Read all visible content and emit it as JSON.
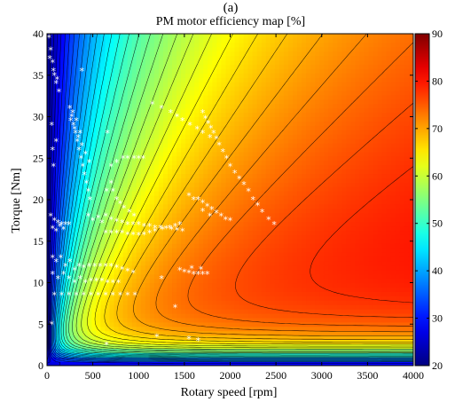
{
  "chart_data": {
    "type": "heatmap",
    "panel_label": "(a)",
    "title": "PM motor efficiency map [%]",
    "xlabel": "Rotary speed [rpm]",
    "ylabel": "Torque [Nm]",
    "xlim": [
      0,
      4000
    ],
    "ylim": [
      0,
      40
    ],
    "xticks": [
      "0",
      "500",
      "1000",
      "1500",
      "2000",
      "2500",
      "3000",
      "3500",
      "4000"
    ],
    "yticks": [
      "0",
      "5",
      "10",
      "15",
      "20",
      "25",
      "30",
      "35",
      "40"
    ],
    "colorbar": {
      "range": [
        20,
        90
      ],
      "ticks": [
        "20",
        "30",
        "40",
        "50",
        "60",
        "70",
        "80",
        "90"
      ],
      "colormap": "jet"
    },
    "efficiency_contours": {
      "levels_step": 2,
      "description_points": [
        {
          "speed": 100,
          "torque": 20,
          "efficiency": 40
        },
        {
          "speed": 300,
          "torque": 20,
          "efficiency": 62
        },
        {
          "speed": 700,
          "torque": 20,
          "efficiency": 78
        },
        {
          "speed": 1500,
          "torque": 20,
          "efficiency": 84
        },
        {
          "speed": 2500,
          "torque": 35,
          "efficiency": 88
        },
        {
          "speed": 3500,
          "torque": 38,
          "efficiency": 90
        },
        {
          "speed": 1000,
          "torque": 5,
          "efficiency": 70
        },
        {
          "speed": 3000,
          "torque": 2,
          "efficiency": 52
        }
      ]
    },
    "operating_points": {
      "marker": "*",
      "color": "#ffffff",
      "points": [
        [
          20,
          39.5
        ],
        [
          40,
          38
        ],
        [
          60,
          36.5
        ],
        [
          80,
          35
        ],
        [
          100,
          34
        ],
        [
          130,
          33
        ],
        [
          30,
          37
        ],
        [
          70,
          35.5
        ],
        [
          110,
          34.5
        ],
        [
          380,
          35.5
        ],
        [
          250,
          31
        ],
        [
          270,
          30
        ],
        [
          290,
          29
        ],
        [
          310,
          28
        ],
        [
          330,
          27
        ],
        [
          350,
          26
        ],
        [
          370,
          25
        ],
        [
          390,
          24
        ],
        [
          410,
          23
        ],
        [
          430,
          22
        ],
        [
          450,
          21
        ],
        [
          470,
          20
        ],
        [
          260,
          29.5
        ],
        [
          300,
          28.5
        ],
        [
          340,
          27.5
        ],
        [
          380,
          26.5
        ],
        [
          420,
          25.5
        ],
        [
          460,
          24.5
        ],
        [
          280,
          30.5
        ],
        [
          320,
          29.5
        ],
        [
          360,
          28
        ],
        [
          50,
          29
        ],
        [
          60,
          26
        ],
        [
          100,
          27
        ],
        [
          70,
          24
        ],
        [
          660,
          28
        ],
        [
          650,
          21
        ],
        [
          700,
          22
        ],
        [
          720,
          21
        ],
        [
          760,
          20
        ],
        [
          800,
          19.5
        ],
        [
          840,
          19
        ],
        [
          900,
          18.5
        ],
        [
          950,
          18
        ],
        [
          700,
          24
        ],
        [
          760,
          24.5
        ],
        [
          830,
          25
        ],
        [
          880,
          25
        ],
        [
          950,
          25
        ],
        [
          1000,
          25
        ],
        [
          1050,
          25
        ],
        [
          1150,
          31.5
        ],
        [
          1250,
          31
        ],
        [
          1350,
          30.5
        ],
        [
          1420,
          30
        ],
        [
          1480,
          29.5
        ],
        [
          1560,
          29
        ],
        [
          1640,
          28.5
        ],
        [
          1700,
          28
        ],
        [
          1780,
          27.5
        ],
        [
          1700,
          30.5
        ],
        [
          1730,
          29.8
        ],
        [
          1760,
          29.2
        ],
        [
          1790,
          28.6
        ],
        [
          1820,
          28
        ],
        [
          1850,
          27.3
        ],
        [
          1880,
          26.6
        ],
        [
          1920,
          25.8
        ],
        [
          1960,
          25
        ],
        [
          2000,
          24
        ],
        [
          2050,
          23.2
        ],
        [
          2100,
          22.5
        ],
        [
          2150,
          21.8
        ],
        [
          2200,
          21
        ],
        [
          2250,
          20
        ],
        [
          2300,
          19.3
        ],
        [
          2350,
          18.5
        ],
        [
          2420,
          17.6
        ],
        [
          2480,
          17
        ],
        [
          1550,
          20.5
        ],
        [
          1600,
          20
        ],
        [
          1650,
          20
        ],
        [
          1700,
          19.6
        ],
        [
          1750,
          19.2
        ],
        [
          1800,
          18.8
        ],
        [
          1850,
          18.4
        ],
        [
          1900,
          18
        ],
        [
          1950,
          17.6
        ],
        [
          2000,
          17.5
        ],
        [
          1700,
          18.6
        ],
        [
          1780,
          18
        ],
        [
          640,
          18
        ],
        [
          700,
          17.6
        ],
        [
          760,
          17.4
        ],
        [
          820,
          17.2
        ],
        [
          880,
          17
        ],
        [
          940,
          17
        ],
        [
          1000,
          17
        ],
        [
          1060,
          16.8
        ],
        [
          1120,
          16.8
        ],
        [
          1180,
          16.6
        ],
        [
          1240,
          16.6
        ],
        [
          1300,
          16.5
        ],
        [
          1360,
          16.4
        ],
        [
          1420,
          16.3
        ],
        [
          1480,
          16.2
        ],
        [
          640,
          16
        ],
        [
          700,
          16
        ],
        [
          760,
          16
        ],
        [
          820,
          16
        ],
        [
          880,
          15.8
        ],
        [
          940,
          15.8
        ],
        [
          1000,
          15.7
        ],
        [
          1060,
          15.8
        ],
        [
          1120,
          16
        ],
        [
          1180,
          16.2
        ],
        [
          1260,
          16.4
        ],
        [
          1340,
          16.6
        ],
        [
          1400,
          16.8
        ],
        [
          1450,
          17
        ],
        [
          40,
          18
        ],
        [
          80,
          17.5
        ],
        [
          120,
          17.2
        ],
        [
          160,
          17
        ],
        [
          200,
          17
        ],
        [
          240,
          17
        ],
        [
          60,
          16.5
        ],
        [
          100,
          16.2
        ],
        [
          140,
          16.8
        ],
        [
          180,
          16.4
        ],
        [
          450,
          18
        ],
        [
          500,
          17.5
        ],
        [
          560,
          17.8
        ],
        [
          600,
          17.2
        ],
        [
          60,
          13
        ],
        [
          100,
          12.5
        ],
        [
          150,
          13
        ],
        [
          200,
          12
        ],
        [
          250,
          12.5
        ],
        [
          300,
          11.5
        ],
        [
          350,
          12
        ],
        [
          400,
          11.8
        ],
        [
          460,
          12
        ],
        [
          520,
          12
        ],
        [
          580,
          12
        ],
        [
          640,
          12
        ],
        [
          700,
          12
        ],
        [
          760,
          11.8
        ],
        [
          820,
          11.6
        ],
        [
          880,
          11.4
        ],
        [
          940,
          11.2
        ],
        [
          60,
          11
        ],
        [
          120,
          10.5
        ],
        [
          180,
          11
        ],
        [
          240,
          10.5
        ],
        [
          300,
          10
        ],
        [
          360,
          10.5
        ],
        [
          420,
          10
        ],
        [
          480,
          10.2
        ],
        [
          540,
          10.2
        ],
        [
          600,
          10.2
        ],
        [
          660,
          10
        ],
        [
          720,
          10
        ],
        [
          780,
          10
        ],
        [
          80,
          8.5
        ],
        [
          160,
          8.5
        ],
        [
          240,
          8.5
        ],
        [
          320,
          8.5
        ],
        [
          400,
          8.5
        ],
        [
          480,
          8.5
        ],
        [
          560,
          8.5
        ],
        [
          640,
          8.5
        ],
        [
          720,
          8.5
        ],
        [
          800,
          8.5
        ],
        [
          880,
          8.5
        ],
        [
          960,
          8.5
        ],
        [
          1450,
          11.5
        ],
        [
          1500,
          11.3
        ],
        [
          1550,
          11.2
        ],
        [
          1600,
          11
        ],
        [
          1650,
          11
        ],
        [
          1700,
          11
        ],
        [
          1750,
          11
        ],
        [
          1580,
          11.7
        ],
        [
          1680,
          11.6
        ],
        [
          50,
          5
        ],
        [
          650,
          2.5
        ],
        [
          1200,
          3.5
        ],
        [
          1550,
          3.2
        ],
        [
          1650,
          3
        ],
        [
          1400,
          7
        ],
        [
          1250,
          10.5
        ]
      ]
    }
  }
}
